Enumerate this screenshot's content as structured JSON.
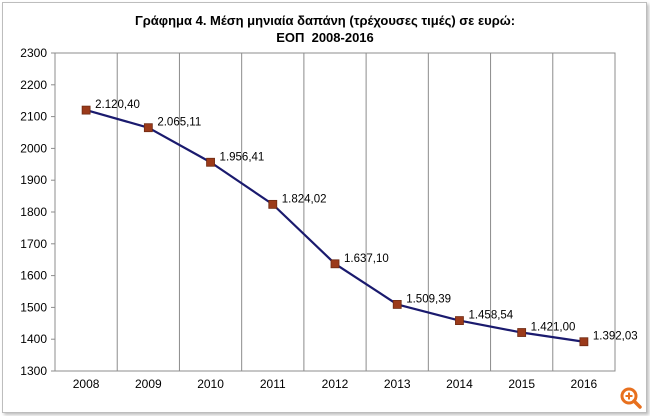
{
  "chart_data": {
    "type": "line",
    "title": "Γράφημα 4. Μέση μηνιαία δαπάνη (τρέχουσες τιμές) σε ευρώ:",
    "subtitle": "ΕΟΠ  2008-2016",
    "xlabel": "",
    "ylabel": "",
    "categories": [
      "2008",
      "2009",
      "2010",
      "2011",
      "2012",
      "2013",
      "2014",
      "2015",
      "2016"
    ],
    "series": [
      {
        "values": [
          2120.4,
          2065.11,
          1956.41,
          1824.02,
          1637.1,
          1509.39,
          1458.54,
          1421.0,
          1392.03
        ],
        "labels": [
          "2.120,40",
          "2.065,11",
          "1.956,41",
          "1.824,02",
          "1.637,10",
          "1.509,39",
          "1.458,54",
          "1.421,00",
          "1.392,03"
        ],
        "color": "#1a1a6e",
        "marker_color": "#9b3a1a"
      }
    ],
    "ylim": [
      1300,
      2300
    ],
    "yticks": [
      "1300",
      "1400",
      "1500",
      "1600",
      "1700",
      "1800",
      "1900",
      "2000",
      "2100",
      "2200",
      "2300"
    ],
    "grid": "vertical",
    "legend": "none"
  },
  "overlay": {
    "icon": "zoom-in-icon",
    "accent": "#e8701e"
  }
}
